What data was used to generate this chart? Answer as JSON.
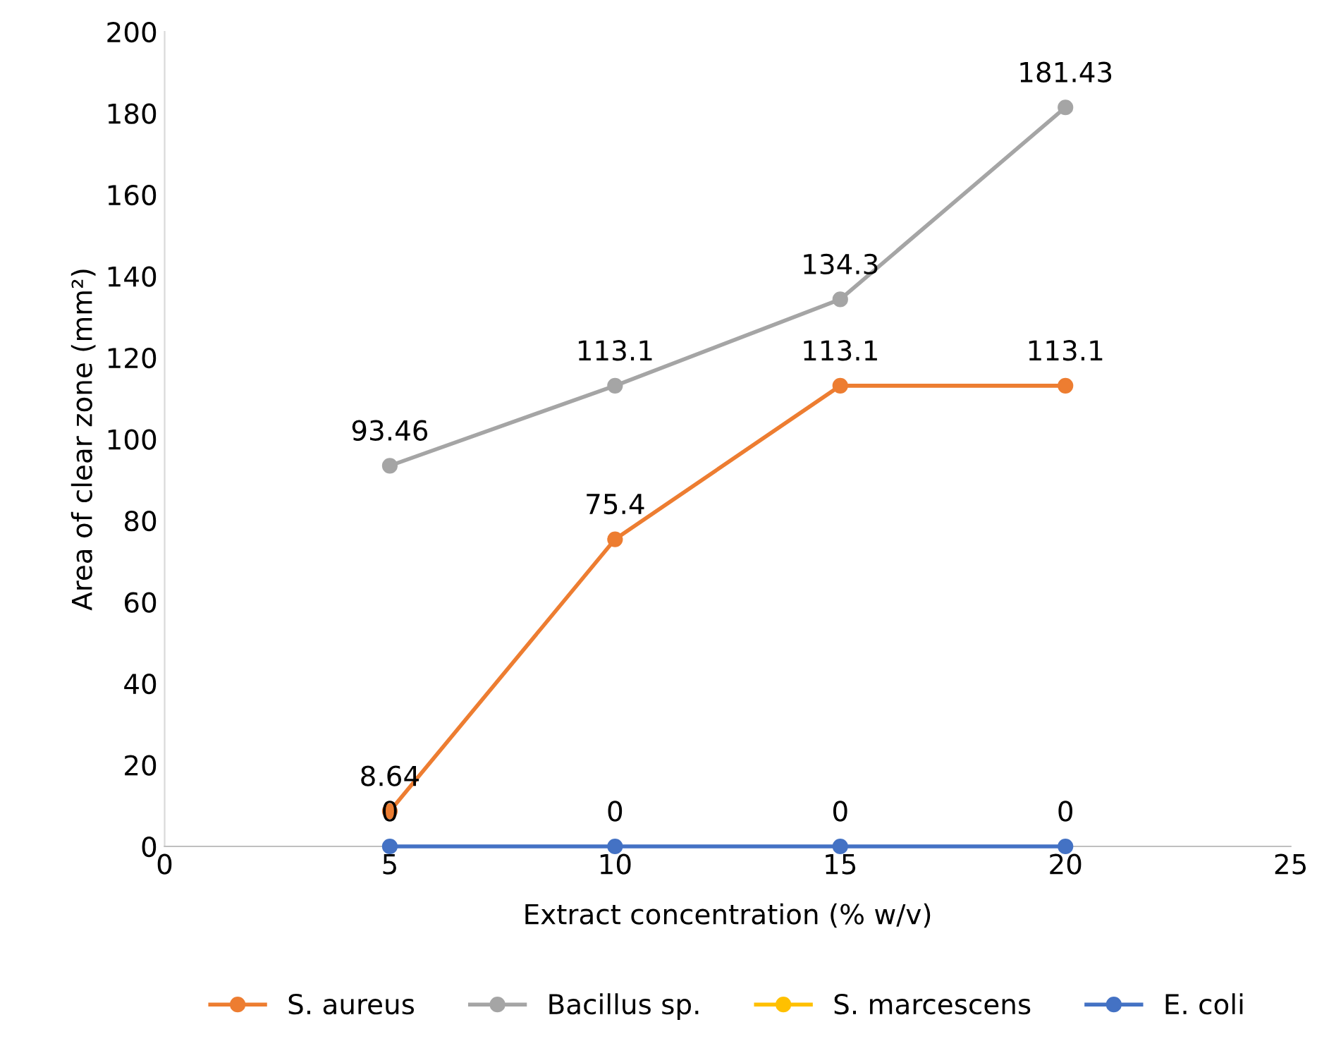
{
  "chart_data": {
    "type": "line",
    "xlabel": "Extract concentration (% w/v)",
    "ylabel": "Area of clear zone (mm²)",
    "x": [
      5,
      10,
      15,
      20
    ],
    "series": [
      {
        "name": "S. aureus",
        "color": "#ed7d31",
        "values": [
          8.64,
          75.4,
          113.1,
          113.1
        ],
        "value_labels": [
          "8.64",
          "75.4",
          "113.1",
          "113.1"
        ]
      },
      {
        "name": "Bacillus sp.",
        "color": "#a5a5a5",
        "values": [
          93.46,
          113.1,
          134.3,
          181.43
        ],
        "value_labels": [
          "93.46",
          "113.1",
          "134.3",
          "181.43"
        ]
      },
      {
        "name": "S. marcescens",
        "color": "#ffc000",
        "values": [
          null,
          null,
          null,
          null
        ]
      },
      {
        "name": "E. coli",
        "color": "#4472c4",
        "values": [
          0,
          0,
          0,
          0
        ],
        "value_labels": [
          "0",
          "0",
          "0",
          "0"
        ]
      }
    ],
    "xlim": [
      0,
      25
    ],
    "xticks": [
      0,
      5,
      10,
      15,
      20,
      25
    ],
    "ylim": [
      0,
      200
    ],
    "yticks": [
      0,
      20,
      40,
      60,
      80,
      100,
      120,
      140,
      160,
      180,
      200
    ],
    "grid": false,
    "legend": "bottom",
    "marker": "circle",
    "line_style": "solid"
  }
}
